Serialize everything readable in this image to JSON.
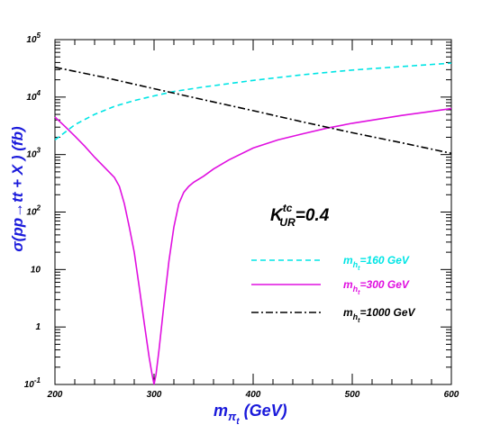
{
  "chart_data": {
    "type": "line",
    "title": "",
    "annotation": {
      "main": "K",
      "sup": "tc",
      "sub": "UR",
      "suffix": "=0.4"
    },
    "xlabel": {
      "main": "m",
      "sub": "π",
      "subsub": "t",
      "suffix": " (GeV)"
    },
    "ylabel": "σ(pp→tt + X ) (fb)",
    "xlim": [
      200,
      600
    ],
    "ylim_log10": [
      -1,
      5
    ],
    "yscale": "log",
    "x_ticks": [
      "200",
      "300",
      "400",
      "500",
      "600"
    ],
    "y_ticks": [
      {
        "base": "10",
        "exp": "5"
      },
      {
        "base": "10",
        "exp": "4"
      },
      {
        "base": "10",
        "exp": "3"
      },
      {
        "base": "10",
        "exp": "2"
      },
      {
        "base": "10",
        "exp": ""
      },
      {
        "base": "1",
        "exp": ""
      },
      {
        "base": "10",
        "exp": "-1"
      }
    ],
    "legend_position": "center-right",
    "series": [
      {
        "name": "m",
        "label_sub": "h",
        "label_subsub": "t",
        "label_suffix": "=160 GeV",
        "color": "#00e5e5",
        "dash": "6,4",
        "x": [
          200,
          220,
          240,
          260,
          280,
          300,
          320,
          350,
          400,
          450,
          500,
          550,
          600
        ],
        "y": [
          1800,
          3300,
          5000,
          6900,
          8700,
          10500,
          12500,
          15000,
          19500,
          24500,
          29500,
          34000,
          39000
        ]
      },
      {
        "name": "m",
        "label_sub": "h",
        "label_subsub": "t",
        "label_suffix": "=300 GeV",
        "color": "#e010e0",
        "dash": "",
        "x": [
          200,
          210,
          220,
          230,
          240,
          250,
          260,
          265,
          270,
          275,
          280,
          285,
          290,
          295,
          298,
          300,
          302,
          305,
          310,
          315,
          320,
          325,
          330,
          335,
          340,
          350,
          360,
          375,
          400,
          425,
          450,
          475,
          500,
          525,
          550,
          575,
          600
        ],
        "y": [
          4500,
          3100,
          2100,
          1400,
          900,
          600,
          400,
          280,
          140,
          55,
          20,
          5,
          1.2,
          0.3,
          0.15,
          0.1,
          0.15,
          0.4,
          2.5,
          14,
          55,
          140,
          220,
          280,
          330,
          420,
          560,
          800,
          1300,
          1800,
          2300,
          2900,
          3500,
          4100,
          4800,
          5500,
          6300
        ]
      },
      {
        "name": "m",
        "label_sub": "h",
        "label_subsub": "t",
        "label_suffix": "=1000 GeV",
        "color": "#000000",
        "dash": "8,3,2,3",
        "x": [
          200,
          250,
          300,
          350,
          400,
          450,
          500,
          550,
          600
        ],
        "y": [
          33000,
          22000,
          14000,
          9000,
          5800,
          3700,
          2400,
          1600,
          1050
        ]
      }
    ]
  }
}
